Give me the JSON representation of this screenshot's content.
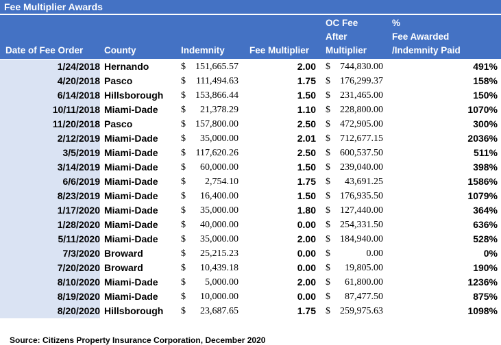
{
  "title": "Fee Multiplier Awards",
  "headers": {
    "date": "Date of Fee Order",
    "county": "County",
    "indemnity": "Indemnity",
    "multiplier": "Fee Multiplier",
    "oc_fee_line1": "OC Fee",
    "oc_fee_line2": "After",
    "oc_fee_line3": "Multiplier",
    "pct_line1": "%",
    "pct_line2": "Fee Awarded",
    "pct_line3": "/Indemnity Paid"
  },
  "currency_symbol": "$",
  "rows": [
    {
      "date": "1/24/2018",
      "county": "Hernando",
      "indemnity": "151,665.57",
      "multiplier": "2.00",
      "oc_fee": "744,830.00",
      "pct": "491%"
    },
    {
      "date": "4/20/2018",
      "county": "Pasco",
      "indemnity": "111,494.63",
      "multiplier": "1.75",
      "oc_fee": "176,299.37",
      "pct": "158%"
    },
    {
      "date": "6/14/2018",
      "county": "Hillsborough",
      "indemnity": "153,866.44",
      "multiplier": "1.50",
      "oc_fee": "231,465.00",
      "pct": "150%"
    },
    {
      "date": "10/11/2018",
      "county": "Miami-Dade",
      "indemnity": "21,378.29",
      "multiplier": "1.10",
      "oc_fee": "228,800.00",
      "pct": "1070%"
    },
    {
      "date": "11/20/2018",
      "county": "Pasco",
      "indemnity": "157,800.00",
      "multiplier": "2.50",
      "oc_fee": "472,905.00",
      "pct": "300%"
    },
    {
      "date": "2/12/2019",
      "county": "Miami-Dade",
      "indemnity": "35,000.00",
      "multiplier": "2.01",
      "oc_fee": "712,677.15",
      "pct": "2036%"
    },
    {
      "date": "3/5/2019",
      "county": "Miami-Dade",
      "indemnity": "117,620.26",
      "multiplier": "2.50",
      "oc_fee": "600,537.50",
      "pct": "511%"
    },
    {
      "date": "3/14/2019",
      "county": "Miami-Dade",
      "indemnity": "60,000.00",
      "multiplier": "1.50",
      "oc_fee": "239,040.00",
      "pct": "398%"
    },
    {
      "date": "6/6/2019",
      "county": "Miami-Dade",
      "indemnity": "2,754.10",
      "multiplier": "1.75",
      "oc_fee": "43,691.25",
      "pct": "1586%"
    },
    {
      "date": "8/23/2019",
      "county": "Miami-Dade",
      "indemnity": "16,400.00",
      "multiplier": "1.50",
      "oc_fee": "176,935.50",
      "pct": "1079%"
    },
    {
      "date": "1/17/2020",
      "county": "Miami-Dade",
      "indemnity": "35,000.00",
      "multiplier": "1.80",
      "oc_fee": "127,440.00",
      "pct": "364%"
    },
    {
      "date": "1/28/2020",
      "county": "Miami-Dade",
      "indemnity": "40,000.00",
      "multiplier": "0.00",
      "oc_fee": "254,331.50",
      "pct": "636%"
    },
    {
      "date": "5/11/2020",
      "county": "Miami-Dade",
      "indemnity": "35,000.00",
      "multiplier": "2.00",
      "oc_fee": "184,940.00",
      "pct": "528%"
    },
    {
      "date": "7/3/2020",
      "county": "Broward",
      "indemnity": "25,215.23",
      "multiplier": "0.00",
      "oc_fee": "0.00",
      "pct": "0%"
    },
    {
      "date": "7/20/2020",
      "county": "Broward",
      "indemnity": "10,439.18",
      "multiplier": "0.00",
      "oc_fee": "19,805.00",
      "pct": "190%"
    },
    {
      "date": "8/10/2020",
      "county": "Miami-Dade",
      "indemnity": "5,000.00",
      "multiplier": "2.00",
      "oc_fee": "61,800.00",
      "pct": "1236%"
    },
    {
      "date": "8/19/2020",
      "county": "Miami-Dade",
      "indemnity": "10,000.00",
      "multiplier": "0.00",
      "oc_fee": "87,477.50",
      "pct": "875%"
    },
    {
      "date": "8/20/2020",
      "county": "Hillsborough",
      "indemnity": "23,687.65",
      "multiplier": "1.75",
      "oc_fee": "259,975.63",
      "pct": "1098%"
    }
  ],
  "source": "Source: Citizens Property Insurance Corporation, December 2020",
  "colors": {
    "header_bg": "#4472c4",
    "date_col_bg": "#dae3f3"
  }
}
